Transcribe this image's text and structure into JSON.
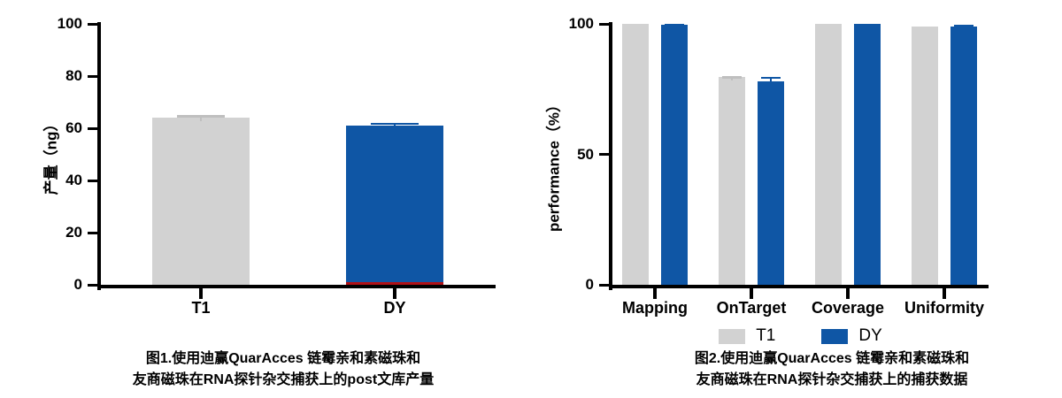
{
  "page": {
    "background": "#ffffff"
  },
  "colors": {
    "t1_gray": "#d2d2d2",
    "dy_blue": "#0f56a5",
    "axis_black": "#000000",
    "error_gray": "#bfbfbf",
    "red_baseline": "#b01116"
  },
  "chart_data": [
    {
      "type": "bar",
      "figure_label": "图1",
      "ylabel": "产量（ng）",
      "ylim": [
        0,
        100
      ],
      "yticks": [
        0,
        20,
        40,
        60,
        80,
        100
      ],
      "grid": false,
      "categories": [
        "T1",
        "DY"
      ],
      "values": [
        64,
        61
      ],
      "errors": [
        1,
        1.2
      ],
      "bar_colors": [
        "#d2d2d2",
        "#0f56a5"
      ],
      "error_colors": [
        "#bfbfbf",
        "#0f56a5"
      ],
      "baseline_marker": {
        "category": "DY",
        "color": "#b01116"
      },
      "caption": [
        "图1.使用迪赢QuarAcces 链霉亲和素磁珠和",
        "友商磁珠在RNA探针杂交捕获上的post文库产量"
      ]
    },
    {
      "type": "bar",
      "figure_label": "图2",
      "ylabel": "performance（%）",
      "ylim": [
        0,
        100
      ],
      "yticks": [
        0,
        50,
        100
      ],
      "grid": false,
      "legend_position": "bottom",
      "categories": [
        "Mapping",
        "OnTarget",
        "Coverage",
        "Uniformity"
      ],
      "series": [
        {
          "name": "T1",
          "color": "#d2d2d2",
          "error_color": "#bfbfbf",
          "values": [
            100,
            79.5,
            100,
            99
          ],
          "errors": [
            0,
            0.4,
            0,
            0
          ]
        },
        {
          "name": "DY",
          "color": "#0f56a5",
          "error_color": "#0f56a5",
          "values": [
            99.8,
            78,
            99.9,
            99
          ],
          "errors": [
            0.3,
            1.7,
            0.2,
            0.5
          ]
        }
      ],
      "caption": [
        "图2.使用迪赢QuarAcces 链霉亲和素磁珠和",
        "友商磁珠在RNA探针杂交捕获上的捕获数据"
      ]
    }
  ]
}
